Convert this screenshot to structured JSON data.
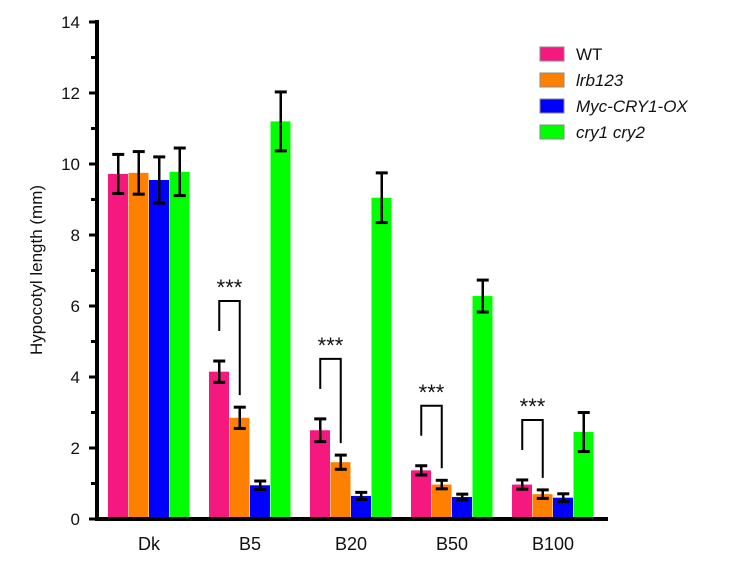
{
  "chart_data": {
    "type": "bar",
    "title": "",
    "xlabel": "",
    "ylabel": "Hypocotyl length (mm)",
    "ylim": [
      0,
      14
    ],
    "yticks_major": [
      0,
      2,
      4,
      6,
      8,
      10,
      12,
      14
    ],
    "yticks_minor": [
      1,
      3,
      5,
      7,
      9,
      11,
      13
    ],
    "grid": false,
    "legend_position": "top-right",
    "categories": [
      "Dk",
      "B5",
      "B20",
      "B50",
      "B100"
    ],
    "series": [
      {
        "name": "WT",
        "italic": false,
        "color": "#F5187F",
        "values": [
          9.72,
          4.15,
          2.5,
          1.37,
          0.97
        ],
        "errors": [
          0.55,
          0.3,
          0.32,
          0.13,
          0.13
        ]
      },
      {
        "name": "lrb123",
        "italic": true,
        "color": "#FF8000",
        "values": [
          9.75,
          2.85,
          1.6,
          0.97,
          0.7
        ],
        "errors": [
          0.6,
          0.3,
          0.2,
          0.12,
          0.12
        ]
      },
      {
        "name": "Myc-CRY1-OX",
        "italic": true,
        "color": "#0000FF",
        "values": [
          9.55,
          0.95,
          0.65,
          0.62,
          0.6
        ],
        "errors": [
          0.65,
          0.12,
          0.1,
          0.08,
          0.11
        ]
      },
      {
        "name": "cry1 cry2",
        "italic": true,
        "color": "#00FF00",
        "values": [
          9.78,
          11.2,
          9.05,
          6.28,
          2.45
        ],
        "errors": [
          0.67,
          0.83,
          0.7,
          0.45,
          0.55
        ]
      }
    ],
    "annotations": [
      {
        "category": "B5",
        "between": [
          "WT",
          "lrb123"
        ],
        "text": "***"
      },
      {
        "category": "B20",
        "between": [
          "WT",
          "lrb123"
        ],
        "text": "***"
      },
      {
        "category": "B50",
        "between": [
          "WT",
          "lrb123"
        ],
        "text": "***"
      },
      {
        "category": "B100",
        "between": [
          "WT",
          "lrb123"
        ],
        "text": "***"
      }
    ]
  }
}
